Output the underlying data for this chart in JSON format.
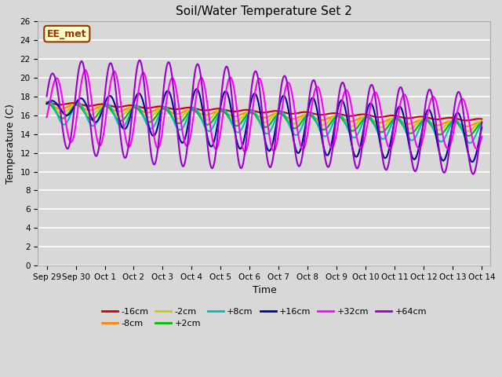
{
  "title": "Soil/Water Temperature Set 2",
  "xlabel": "Time",
  "ylabel": "Temperature (C)",
  "ylim": [
    0,
    26
  ],
  "yticks": [
    0,
    2,
    4,
    6,
    8,
    10,
    12,
    14,
    16,
    18,
    20,
    22,
    24,
    26
  ],
  "bg_color": "#d8d8d8",
  "series": {
    "-16cm": {
      "color": "#cc0000",
      "lw": 1.5
    },
    "-8cm": {
      "color": "#ff8800",
      "lw": 1.5
    },
    "-2cm": {
      "color": "#cccc00",
      "lw": 1.5
    },
    "+2cm": {
      "color": "#00bb00",
      "lw": 1.5
    },
    "+8cm": {
      "color": "#00bbbb",
      "lw": 1.5
    },
    "+16cm": {
      "color": "#000099",
      "lw": 1.5
    },
    "+32cm": {
      "color": "#ff00ff",
      "lw": 1.5
    },
    "+64cm": {
      "color": "#9900cc",
      "lw": 1.5
    }
  },
  "annotation": {
    "text": "EE_met",
    "fontsize": 9,
    "bg": "#ffffcc",
    "border": "#993300"
  },
  "tick_labels": [
    "Sep 29",
    "Sep 30",
    "Oct 1",
    "Oct 2",
    "Oct 3",
    "Oct 4",
    "Oct 5",
    "Oct 6",
    "Oct 7",
    "Oct 8",
    "Oct 9",
    "Oct 10",
    "Oct 11",
    "Oct 12",
    "Oct 13",
    "Oct 14"
  ]
}
